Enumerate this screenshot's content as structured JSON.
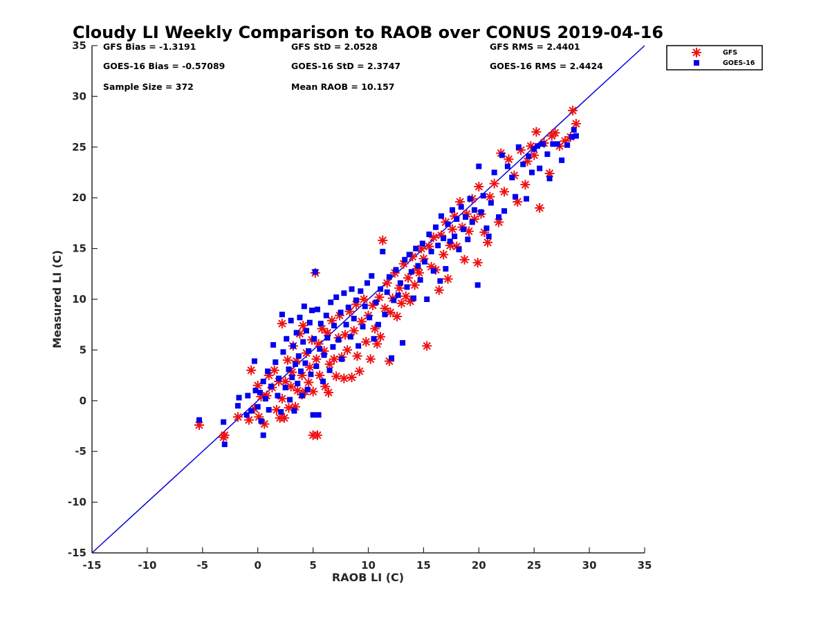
{
  "chart_data": {
    "type": "scatter",
    "title": "Cloudy LI Weekly Comparison to RAOB over CONUS 2019-04-16",
    "xlabel": "RAOB LI (C)",
    "ylabel": "Measured LI (C)",
    "xlim": [
      -15,
      35
    ],
    "ylim": [
      -15,
      35
    ],
    "xticks": [
      -15,
      -10,
      -5,
      0,
      5,
      10,
      15,
      20,
      25,
      30,
      35
    ],
    "yticks": [
      -15,
      -10,
      -5,
      0,
      5,
      10,
      15,
      20,
      25,
      30,
      35
    ],
    "grid": false,
    "legend_position": "outside-top-right",
    "reference_line": {
      "x": [
        -15,
        35
      ],
      "y": [
        -15,
        35
      ],
      "color": "#0000dd"
    },
    "stats": {
      "gfs_bias": "GFS Bias = -1.3191",
      "goes_bias": "GOES-16 Bias = -0.57089",
      "sample_size": "Sample Size = 372",
      "gfs_std": "GFS StD = 2.0528",
      "goes_std": "GOES-16 StD = 2.3747",
      "mean_raob": "Mean RAOB = 10.157",
      "gfs_rms": "GFS RMS = 2.4401",
      "goes_rms": "GOES-16 RMS = 2.4424"
    },
    "series": [
      {
        "name": "GFS",
        "marker": "asterisk",
        "color": "#ee1111",
        "points": [
          [
            -5.3,
            -2.4
          ],
          [
            -3.0,
            -3.4
          ],
          [
            -3.1,
            -3.6
          ],
          [
            -1.8,
            -1.6
          ],
          [
            -0.8,
            -1.9
          ],
          [
            -0.6,
            3.0
          ],
          [
            -0.3,
            -0.8
          ],
          [
            0.0,
            1.5
          ],
          [
            0.1,
            -1.6
          ],
          [
            0.3,
            0.4
          ],
          [
            0.6,
            -2.3
          ],
          [
            0.8,
            0.5
          ],
          [
            1.0,
            2.5
          ],
          [
            1.3,
            1.3
          ],
          [
            1.5,
            3.0
          ],
          [
            1.7,
            -0.9
          ],
          [
            1.9,
            1.9
          ],
          [
            2.0,
            -1.7
          ],
          [
            2.2,
            7.6
          ],
          [
            2.2,
            0.2
          ],
          [
            2.4,
            -1.7
          ],
          [
            2.5,
            1.9
          ],
          [
            2.7,
            4.0
          ],
          [
            2.8,
            -0.7
          ],
          [
            3.0,
            1.4
          ],
          [
            3.1,
            2.8
          ],
          [
            3.2,
            5.4
          ],
          [
            3.4,
            -0.6
          ],
          [
            3.5,
            3.9
          ],
          [
            3.6,
            1.0
          ],
          [
            3.8,
            6.6
          ],
          [
            4.0,
            0.6
          ],
          [
            4.0,
            2.5
          ],
          [
            4.1,
            7.4
          ],
          [
            4.3,
            0.9
          ],
          [
            4.4,
            4.7
          ],
          [
            4.6,
            1.8
          ],
          [
            4.7,
            3.3
          ],
          [
            4.9,
            6.0
          ],
          [
            5.0,
            0.9
          ],
          [
            5.0,
            -3.4
          ],
          [
            5.2,
            12.6
          ],
          [
            5.3,
            4.1
          ],
          [
            5.4,
            -3.4
          ],
          [
            5.5,
            5.6
          ],
          [
            5.6,
            2.5
          ],
          [
            5.8,
            7.1
          ],
          [
            6.0,
            4.9
          ],
          [
            6.1,
            1.4
          ],
          [
            6.3,
            6.7
          ],
          [
            6.4,
            0.8
          ],
          [
            6.5,
            3.6
          ],
          [
            6.7,
            7.9
          ],
          [
            6.9,
            4.1
          ],
          [
            7.1,
            2.4
          ],
          [
            7.3,
            6.2
          ],
          [
            7.4,
            8.4
          ],
          [
            7.6,
            4.3
          ],
          [
            7.8,
            2.2
          ],
          [
            7.9,
            6.5
          ],
          [
            8.1,
            5.0
          ],
          [
            8.3,
            8.8
          ],
          [
            8.5,
            2.3
          ],
          [
            8.7,
            6.9
          ],
          [
            8.9,
            9.5
          ],
          [
            9.0,
            4.4
          ],
          [
            9.2,
            2.9
          ],
          [
            9.4,
            7.8
          ],
          [
            9.6,
            10.0
          ],
          [
            9.8,
            5.8
          ],
          [
            10.0,
            8.4
          ],
          [
            10.2,
            4.1
          ],
          [
            10.4,
            9.4
          ],
          [
            10.6,
            7.1
          ],
          [
            10.8,
            5.6
          ],
          [
            11.0,
            10.2
          ],
          [
            11.1,
            6.3
          ],
          [
            11.3,
            15.8
          ],
          [
            11.5,
            9.1
          ],
          [
            11.7,
            11.6
          ],
          [
            11.9,
            3.9
          ],
          [
            12.0,
            8.7
          ],
          [
            12.2,
            10.1
          ],
          [
            12.4,
            12.6
          ],
          [
            12.6,
            8.3
          ],
          [
            12.8,
            11.1
          ],
          [
            13.0,
            9.6
          ],
          [
            13.2,
            13.5
          ],
          [
            13.4,
            10.3
          ],
          [
            13.6,
            12.1
          ],
          [
            13.8,
            9.8
          ],
          [
            14.0,
            14.2
          ],
          [
            14.2,
            11.4
          ],
          [
            14.4,
            13.0
          ],
          [
            14.6,
            12.6
          ],
          [
            14.8,
            15.0
          ],
          [
            15.0,
            14.0
          ],
          [
            15.3,
            5.4
          ],
          [
            15.5,
            15.2
          ],
          [
            15.7,
            13.2
          ],
          [
            15.9,
            16.1
          ],
          [
            16.1,
            12.9
          ],
          [
            16.4,
            10.9
          ],
          [
            16.6,
            16.3
          ],
          [
            16.8,
            14.4
          ],
          [
            17.0,
            17.6
          ],
          [
            17.2,
            12.0
          ],
          [
            17.4,
            15.3
          ],
          [
            17.6,
            16.9
          ],
          [
            17.8,
            18.2
          ],
          [
            18.0,
            15.2
          ],
          [
            18.3,
            19.6
          ],
          [
            18.5,
            17.1
          ],
          [
            18.7,
            13.9
          ],
          [
            18.9,
            18.4
          ],
          [
            19.1,
            16.7
          ],
          [
            19.4,
            19.9
          ],
          [
            19.6,
            17.9
          ],
          [
            19.9,
            13.6
          ],
          [
            20.0,
            21.1
          ],
          [
            20.2,
            18.4
          ],
          [
            20.5,
            16.6
          ],
          [
            20.8,
            15.6
          ],
          [
            21.0,
            20.1
          ],
          [
            21.4,
            21.4
          ],
          [
            21.8,
            17.6
          ],
          [
            22.0,
            24.4
          ],
          [
            22.3,
            20.6
          ],
          [
            22.7,
            23.8
          ],
          [
            23.2,
            22.2
          ],
          [
            23.5,
            19.6
          ],
          [
            23.8,
            24.7
          ],
          [
            24.2,
            21.3
          ],
          [
            24.4,
            23.6
          ],
          [
            24.7,
            25.1
          ],
          [
            25.0,
            24.2
          ],
          [
            25.2,
            26.5
          ],
          [
            25.5,
            19.0
          ],
          [
            25.9,
            25.4
          ],
          [
            26.4,
            22.4
          ],
          [
            26.6,
            26.1
          ],
          [
            26.9,
            26.4
          ],
          [
            27.3,
            25.1
          ],
          [
            27.8,
            25.6
          ],
          [
            28.3,
            26.0
          ],
          [
            28.5,
            28.6
          ],
          [
            28.8,
            27.3
          ]
        ]
      },
      {
        "name": "GOES-16",
        "marker": "square",
        "color": "#0000ee",
        "points": [
          [
            -5.3,
            -1.9
          ],
          [
            -3.1,
            -2.1
          ],
          [
            -3.0,
            -4.3
          ],
          [
            -1.8,
            -0.5
          ],
          [
            -1.7,
            0.3
          ],
          [
            -1.0,
            -1.4
          ],
          [
            -0.9,
            0.5
          ],
          [
            -0.6,
            -1.0
          ],
          [
            -0.3,
            3.9
          ],
          [
            -0.2,
            1.0
          ],
          [
            0.0,
            -0.6
          ],
          [
            0.2,
            0.8
          ],
          [
            0.3,
            -2.0
          ],
          [
            0.5,
            1.9
          ],
          [
            0.5,
            -3.4
          ],
          [
            0.7,
            0.2
          ],
          [
            0.9,
            2.9
          ],
          [
            1.0,
            -0.9
          ],
          [
            1.2,
            1.4
          ],
          [
            1.4,
            5.5
          ],
          [
            1.6,
            3.8
          ],
          [
            1.8,
            0.5
          ],
          [
            1.9,
            2.2
          ],
          [
            2.1,
            -1.1
          ],
          [
            2.2,
            8.5
          ],
          [
            2.3,
            4.8
          ],
          [
            2.5,
            1.3
          ],
          [
            2.6,
            6.1
          ],
          [
            2.8,
            3.1
          ],
          [
            2.9,
            0.1
          ],
          [
            3.0,
            7.9
          ],
          [
            3.1,
            2.3
          ],
          [
            3.2,
            5.4
          ],
          [
            3.3,
            -1.0
          ],
          [
            3.4,
            3.6
          ],
          [
            3.5,
            6.7
          ],
          [
            3.6,
            1.7
          ],
          [
            3.7,
            4.4
          ],
          [
            3.8,
            8.2
          ],
          [
            3.9,
            2.9
          ],
          [
            4.0,
            0.5
          ],
          [
            4.1,
            5.8
          ],
          [
            4.2,
            9.3
          ],
          [
            4.3,
            3.7
          ],
          [
            4.4,
            6.9
          ],
          [
            4.5,
            1.1
          ],
          [
            4.6,
            4.9
          ],
          [
            4.7,
            7.7
          ],
          [
            4.8,
            2.6
          ],
          [
            4.9,
            8.9
          ],
          [
            5.0,
            -1.4
          ],
          [
            5.1,
            6.1
          ],
          [
            5.2,
            12.7
          ],
          [
            5.3,
            3.4
          ],
          [
            5.4,
            9.0
          ],
          [
            5.5,
            -1.4
          ],
          [
            5.6,
            5.1
          ],
          [
            5.7,
            7.6
          ],
          [
            5.9,
            1.9
          ],
          [
            6.0,
            4.5
          ],
          [
            6.2,
            8.4
          ],
          [
            6.3,
            6.2
          ],
          [
            6.5,
            3.0
          ],
          [
            6.6,
            9.7
          ],
          [
            6.8,
            5.3
          ],
          [
            6.9,
            7.4
          ],
          [
            7.1,
            10.2
          ],
          [
            7.3,
            6.0
          ],
          [
            7.5,
            8.7
          ],
          [
            7.6,
            4.1
          ],
          [
            7.8,
            10.6
          ],
          [
            8.0,
            7.5
          ],
          [
            8.2,
            9.2
          ],
          [
            8.4,
            6.3
          ],
          [
            8.5,
            11.0
          ],
          [
            8.7,
            8.1
          ],
          [
            8.9,
            9.9
          ],
          [
            9.1,
            5.4
          ],
          [
            9.3,
            10.8
          ],
          [
            9.5,
            7.3
          ],
          [
            9.7,
            9.3
          ],
          [
            9.9,
            11.6
          ],
          [
            10.1,
            8.2
          ],
          [
            10.3,
            12.3
          ],
          [
            10.5,
            6.1
          ],
          [
            10.7,
            9.7
          ],
          [
            10.9,
            7.5
          ],
          [
            11.1,
            11.0
          ],
          [
            11.3,
            14.7
          ],
          [
            11.5,
            8.5
          ],
          [
            11.7,
            10.7
          ],
          [
            11.9,
            12.2
          ],
          [
            12.1,
            4.2
          ],
          [
            12.3,
            9.9
          ],
          [
            12.5,
            12.9
          ],
          [
            12.7,
            10.4
          ],
          [
            12.9,
            11.6
          ],
          [
            13.1,
            5.7
          ],
          [
            13.3,
            13.9
          ],
          [
            13.5,
            11.2
          ],
          [
            13.7,
            14.4
          ],
          [
            13.9,
            12.7
          ],
          [
            14.1,
            10.1
          ],
          [
            14.3,
            15.0
          ],
          [
            14.5,
            13.3
          ],
          [
            14.7,
            11.9
          ],
          [
            14.9,
            15.5
          ],
          [
            15.1,
            13.7
          ],
          [
            15.3,
            10.0
          ],
          [
            15.5,
            16.4
          ],
          [
            15.7,
            14.7
          ],
          [
            15.9,
            12.8
          ],
          [
            16.1,
            17.1
          ],
          [
            16.3,
            15.3
          ],
          [
            16.5,
            11.8
          ],
          [
            16.6,
            18.2
          ],
          [
            16.8,
            16.0
          ],
          [
            17.0,
            13.0
          ],
          [
            17.2,
            17.4
          ],
          [
            17.4,
            15.7
          ],
          [
            17.6,
            18.8
          ],
          [
            17.8,
            16.2
          ],
          [
            18.0,
            17.9
          ],
          [
            18.2,
            14.9
          ],
          [
            18.4,
            19.1
          ],
          [
            18.6,
            16.9
          ],
          [
            18.8,
            18.1
          ],
          [
            19.0,
            15.9
          ],
          [
            19.2,
            19.9
          ],
          [
            19.4,
            17.6
          ],
          [
            19.6,
            18.8
          ],
          [
            19.9,
            11.4
          ],
          [
            20.0,
            23.1
          ],
          [
            20.2,
            18.6
          ],
          [
            20.4,
            20.2
          ],
          [
            20.7,
            17.0
          ],
          [
            20.9,
            16.2
          ],
          [
            21.1,
            19.5
          ],
          [
            21.4,
            22.5
          ],
          [
            21.8,
            18.1
          ],
          [
            22.1,
            24.2
          ],
          [
            22.3,
            18.7
          ],
          [
            22.6,
            23.1
          ],
          [
            23.0,
            22.0
          ],
          [
            23.3,
            20.1
          ],
          [
            23.6,
            25.0
          ],
          [
            24.0,
            23.3
          ],
          [
            24.3,
            19.9
          ],
          [
            24.5,
            24.1
          ],
          [
            24.8,
            22.5
          ],
          [
            25.0,
            24.8
          ],
          [
            25.3,
            25.1
          ],
          [
            25.5,
            22.9
          ],
          [
            25.8,
            25.3
          ],
          [
            26.2,
            24.3
          ],
          [
            26.4,
            21.9
          ],
          [
            26.7,
            25.3
          ],
          [
            27.1,
            25.3
          ],
          [
            27.5,
            23.7
          ],
          [
            28.0,
            25.2
          ],
          [
            28.4,
            26.0
          ],
          [
            28.6,
            26.7
          ],
          [
            28.8,
            26.1
          ]
        ]
      }
    ]
  }
}
